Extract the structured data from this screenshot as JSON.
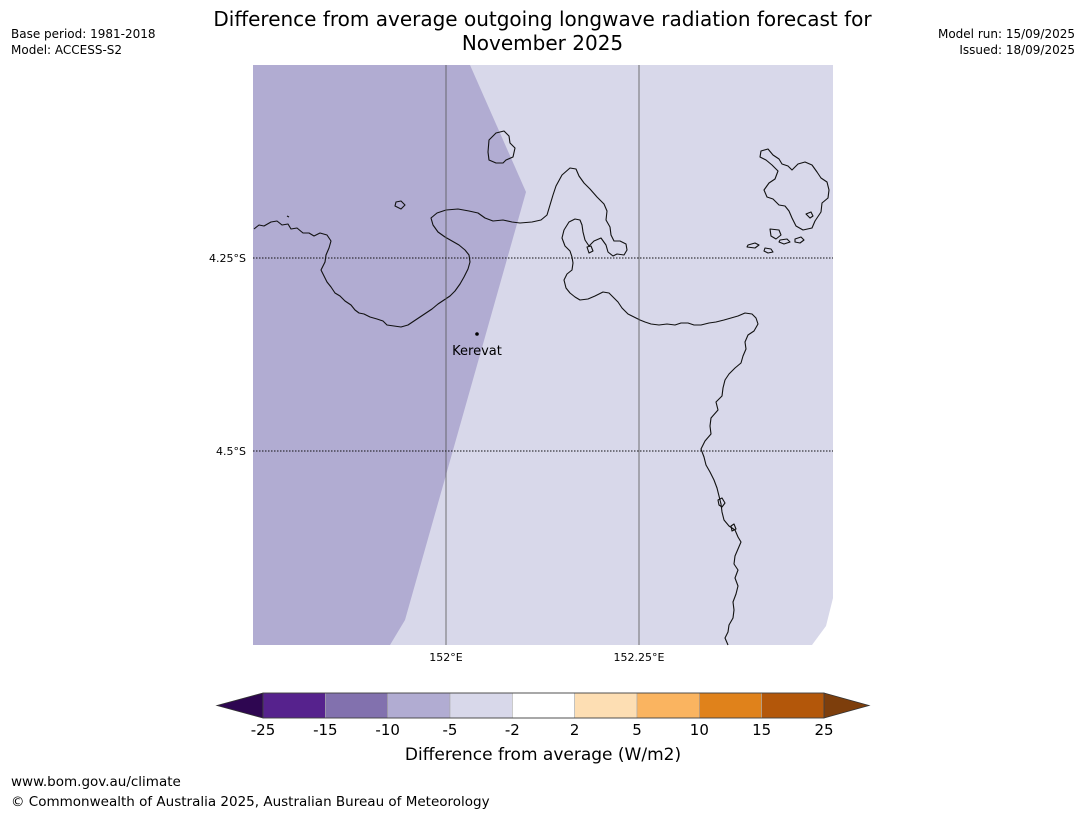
{
  "header": {
    "base_period": "Base period: 1981-2018",
    "model": "Model: ACCESS-S2",
    "model_run": "Model run: 15/09/2025",
    "issued": "Issued: 18/09/2025",
    "title_line1": "Difference from average outgoing longwave radiation forecast for",
    "title_line2": "November 2025"
  },
  "map": {
    "lat_labels": [
      "4.25°S",
      "4.5°S"
    ],
    "lon_labels": [
      "152°E",
      "152.25°E"
    ],
    "place": {
      "name": "Kerevat",
      "lon": 152.04,
      "lat": -4.35
    },
    "regions": [
      {
        "category": "-10 to -5",
        "color": "#b1acd2"
      },
      {
        "category": "-5 to -2",
        "color": "#d8d8ea"
      }
    ]
  },
  "colorbar": {
    "label": "Difference from average (W/m2)",
    "ticks": [
      "-25",
      "-15",
      "-10",
      "-5",
      "-2",
      "2",
      "5",
      "10",
      "15",
      "25"
    ],
    "colors": [
      "#56228d",
      "#8271ae",
      "#b1acd2",
      "#d8d8ea",
      "#ffffff",
      "#fddeb3",
      "#fab460",
      "#e0821b",
      "#b3570a"
    ],
    "under_color": "#2e0651",
    "over_color": "#7d3e0c"
  },
  "footer": {
    "url": "www.bom.gov.au/climate",
    "copyright": "© Commonwealth of Australia 2025, Australian Bureau of Meteorology"
  }
}
